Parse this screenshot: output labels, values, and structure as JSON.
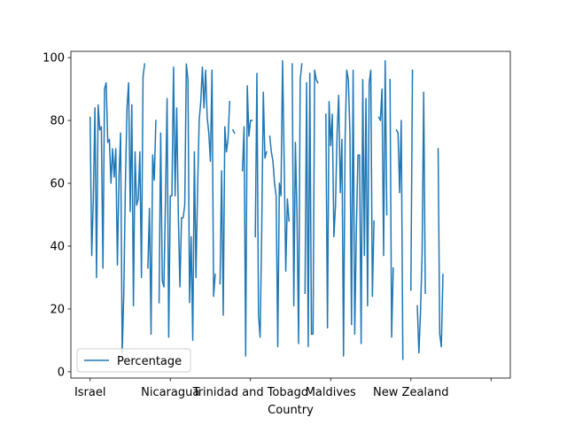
{
  "chart_data": {
    "type": "line",
    "xlabel": "Country",
    "ylabel": "",
    "ylim": [
      -2,
      102
    ],
    "yticks": [
      0,
      20,
      40,
      60,
      80,
      100
    ],
    "xtick_labels": [
      {
        "index": 0,
        "label": "Israel"
      },
      {
        "index": 50,
        "label": "Nicaragua"
      },
      {
        "index": 100,
        "label": "Trinidad and Tobago"
      },
      {
        "index": 150,
        "label": "Maldives"
      },
      {
        "index": 200,
        "label": "New Zealand"
      },
      {
        "index": 250,
        "label": ""
      }
    ],
    "xlim": [
      -12,
      262
    ],
    "grid": false,
    "legend": "lower-left",
    "color": "#1f77b4",
    "series": [
      {
        "name": "Percentage",
        "values": [
          81,
          37,
          55,
          84,
          30,
          85,
          77,
          78,
          33,
          90,
          92,
          73,
          74,
          60,
          71,
          62,
          71,
          34,
          62,
          76,
          6,
          25,
          60,
          84,
          92,
          51,
          85,
          21,
          70,
          53,
          55,
          70,
          30,
          94,
          98,
          null,
          33,
          52,
          12,
          69,
          61,
          80,
          null,
          22,
          76,
          29,
          27,
          55,
          87,
          11,
          56,
          56,
          97,
          56,
          84,
          50,
          27,
          49,
          49,
          53,
          98,
          93,
          22,
          43,
          10,
          70,
          30,
          58,
          80,
          86,
          97,
          84,
          96,
          81,
          76,
          67,
          96,
          24,
          31,
          null,
          null,
          28,
          64,
          18,
          78,
          70,
          74,
          86,
          null,
          77,
          76,
          null,
          null,
          11,
          null,
          64,
          78,
          5,
          91,
          75,
          80,
          80,
          null,
          43,
          95,
          18,
          11,
          45,
          89,
          68,
          70,
          null,
          75,
          70,
          67,
          60,
          56,
          8,
          60,
          56,
          99,
          67,
          32,
          55,
          48,
          null,
          98,
          21,
          73,
          50,
          9,
          93,
          98,
          null,
          25,
          92,
          8,
          95,
          12,
          12,
          96,
          93,
          92,
          null,
          null,
          null,
          null,
          82,
          14,
          86,
          72,
          82,
          43,
          53,
          76,
          88,
          57,
          74,
          5,
          74,
          96,
          93,
          76,
          15,
          96,
          12,
          45,
          69,
          69,
          9,
          93,
          37,
          87,
          21,
          92,
          96,
          24,
          48,
          null,
          null,
          81,
          80,
          90,
          37,
          99,
          50,
          null,
          93,
          11,
          33,
          null,
          77,
          76,
          57,
          80,
          4,
          null,
          null,
          null,
          null,
          26,
          96,
          null,
          null,
          21,
          6,
          19,
          37,
          89,
          25,
          null,
          null,
          null,
          null,
          null,
          null,
          null,
          71,
          12,
          8,
          31
        ]
      }
    ]
  }
}
